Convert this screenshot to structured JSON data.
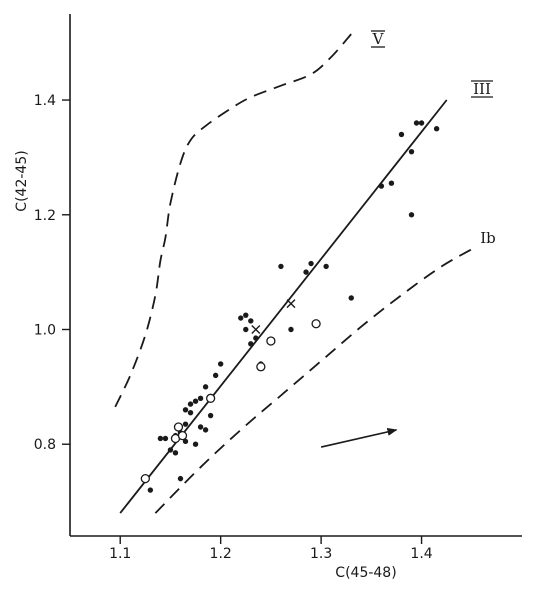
{
  "chart_data": {
    "type": "scatter",
    "title": "",
    "xlabel": "C(45-48)",
    "ylabel": "C(42-45)",
    "xlim": [
      1.05,
      1.5
    ],
    "ylim": [
      0.64,
      1.55
    ],
    "xticks": [
      1.1,
      1.2,
      1.3,
      1.4
    ],
    "xtick_labels": [
      "1.1",
      "1.2",
      "1.3",
      "1.4"
    ],
    "yticks": [
      0.8,
      1.0,
      1.2,
      1.4
    ],
    "ytick_labels": [
      "0.8",
      "1.0",
      "1.2",
      "1.4"
    ],
    "grid": false,
    "series": [
      {
        "marker": "filled-dot",
        "x": [
          1.13,
          1.14,
          1.145,
          1.15,
          1.155,
          1.155,
          1.16,
          1.16,
          1.165,
          1.165,
          1.165,
          1.17,
          1.17,
          1.175,
          1.175,
          1.18,
          1.18,
          1.185,
          1.185,
          1.19,
          1.19,
          1.195,
          1.2,
          1.22,
          1.225,
          1.225,
          1.23,
          1.23,
          1.235,
          1.24,
          1.26,
          1.27,
          1.285,
          1.29,
          1.305,
          1.33,
          1.36,
          1.37,
          1.38,
          1.39,
          1.39,
          1.395,
          1.4,
          1.415
        ],
        "y": [
          0.72,
          0.81,
          0.81,
          0.79,
          0.785,
          0.815,
          0.74,
          0.82,
          0.805,
          0.835,
          0.86,
          0.855,
          0.87,
          0.8,
          0.875,
          0.83,
          0.88,
          0.825,
          0.9,
          0.88,
          0.85,
          0.92,
          0.94,
          1.02,
          1.0,
          1.025,
          0.975,
          1.015,
          0.985,
          0.94,
          1.11,
          1.0,
          1.1,
          1.115,
          1.11,
          1.055,
          1.25,
          1.255,
          1.34,
          1.2,
          1.31,
          1.36,
          1.36,
          1.35
        ]
      },
      {
        "marker": "open-circle",
        "x": [
          1.125,
          1.155,
          1.158,
          1.162,
          1.19,
          1.24,
          1.25,
          1.295
        ],
        "y": [
          0.74,
          0.81,
          0.83,
          0.815,
          0.88,
          0.935,
          0.98,
          1.01
        ]
      },
      {
        "marker": "cross",
        "x": [
          1.235,
          1.27
        ],
        "y": [
          1.0,
          1.045
        ]
      }
    ],
    "lines": [
      {
        "name": "III",
        "style": "solid",
        "x": [
          1.1,
          1.425
        ],
        "y": [
          0.68,
          1.4
        ]
      },
      {
        "name": "V",
        "style": "dashed",
        "x": [
          1.095,
          1.11,
          1.125,
          1.135,
          1.14,
          1.145,
          1.15,
          1.16,
          1.17,
          1.185,
          1.21,
          1.23,
          1.26,
          1.29,
          1.31,
          1.33
        ],
        "y": [
          0.865,
          0.92,
          0.99,
          1.06,
          1.12,
          1.16,
          1.22,
          1.29,
          1.33,
          1.355,
          1.385,
          1.405,
          1.425,
          1.445,
          1.475,
          1.515
        ]
      },
      {
        "name": "Ib",
        "style": "dashed",
        "x": [
          1.135,
          1.18,
          1.22,
          1.26,
          1.3,
          1.34,
          1.38,
          1.42,
          1.45
        ],
        "y": [
          0.68,
          0.76,
          0.825,
          0.885,
          0.945,
          1.005,
          1.06,
          1.11,
          1.14
        ]
      }
    ],
    "annotations": {
      "arrow": {
        "from": [
          1.3,
          0.795
        ],
        "to": [
          1.375,
          0.825
        ]
      }
    }
  }
}
